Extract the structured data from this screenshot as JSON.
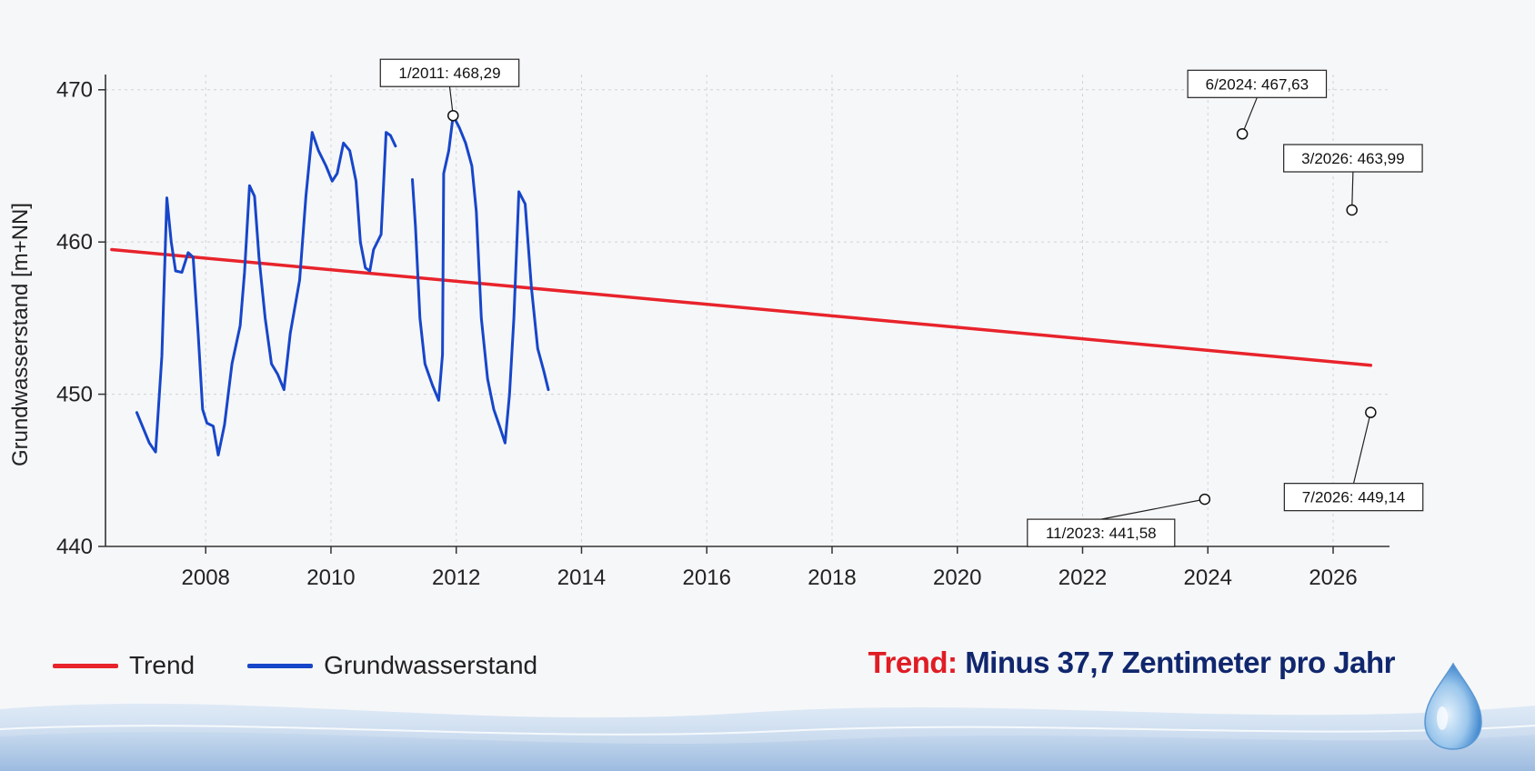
{
  "chart_data": {
    "type": "line",
    "title": "",
    "xlabel": "",
    "ylabel": "Grundwasserstand [m+NN]",
    "xlim": [
      2006.4,
      2026.9
    ],
    "ylim": [
      440,
      471
    ],
    "x_ticks": [
      "2008",
      "2010",
      "2012",
      "2014",
      "2016",
      "2018",
      "2020",
      "2022",
      "2024",
      "2026"
    ],
    "y_ticks": [
      "440",
      "450",
      "460",
      "470"
    ],
    "grid": true,
    "legend_position": "bottom-left",
    "series": [
      {
        "name": "Trend",
        "color": "#e8232b",
        "points": [
          [
            2006.5,
            459.5
          ],
          [
            2026.6,
            451.9
          ]
        ]
      },
      {
        "name": "Grundwasserstand",
        "color": "#1746c9",
        "segments": [
          [
            [
              2006.9,
              448.8
            ],
            [
              2007.0,
              447.8
            ],
            [
              2007.1,
              446.8
            ],
            [
              2007.2,
              446.2
            ],
            [
              2007.3,
              452.5
            ],
            [
              2007.38,
              462.9
            ],
            [
              2007.45,
              460.0
            ],
            [
              2007.52,
              458.1
            ],
            [
              2007.62,
              458.0
            ],
            [
              2007.72,
              459.3
            ],
            [
              2007.8,
              459.0
            ],
            [
              2007.88,
              454.0
            ],
            [
              2007.95,
              449.0
            ],
            [
              2008.02,
              448.1
            ],
            [
              2008.12,
              447.9
            ],
            [
              2008.2,
              446.0
            ],
            [
              2008.3,
              448.0
            ],
            [
              2008.42,
              452.0
            ],
            [
              2008.55,
              454.5
            ],
            [
              2008.62,
              458.0
            ],
            [
              2008.7,
              463.7
            ],
            [
              2008.78,
              463.0
            ],
            [
              2008.85,
              459.0
            ],
            [
              2008.95,
              455.0
            ],
            [
              2009.05,
              452.0
            ],
            [
              2009.15,
              451.3
            ],
            [
              2009.25,
              450.3
            ],
            [
              2009.35,
              454.0
            ],
            [
              2009.5,
              457.5
            ],
            [
              2009.6,
              463.0
            ],
            [
              2009.7,
              467.2
            ],
            [
              2009.8,
              466.0
            ],
            [
              2009.92,
              465.0
            ],
            [
              2010.02,
              464.0
            ],
            [
              2010.1,
              464.5
            ],
            [
              2010.2,
              466.5
            ],
            [
              2010.3,
              466.0
            ],
            [
              2010.4,
              464.0
            ],
            [
              2010.47,
              460.0
            ],
            [
              2010.55,
              458.3
            ],
            [
              2010.62,
              458.1
            ],
            [
              2010.68,
              459.5
            ],
            [
              2010.8,
              460.5
            ],
            [
              2010.88,
              467.2
            ],
            [
              2010.95,
              467.0
            ],
            [
              2011.03,
              466.3
            ]
          ],
          [
            [
              2011.3,
              464.1
            ],
            [
              2011.35,
              461.0
            ],
            [
              2011.42,
              455.0
            ],
            [
              2011.5,
              452.0
            ],
            [
              2011.62,
              450.6
            ],
            [
              2011.72,
              449.6
            ],
            [
              2011.78,
              452.6
            ],
            [
              2011.8,
              464.5
            ],
            [
              2011.88,
              466.0
            ],
            [
              2011.95,
              468.3
            ],
            [
              2012.05,
              467.5
            ],
            [
              2012.15,
              466.5
            ],
            [
              2012.25,
              465.0
            ],
            [
              2012.32,
              462.0
            ],
            [
              2012.4,
              455.0
            ],
            [
              2012.5,
              451.0
            ],
            [
              2012.6,
              449.0
            ],
            [
              2012.7,
              447.8
            ],
            [
              2012.78,
              446.8
            ],
            [
              2012.85,
              450.0
            ],
            [
              2012.92,
              455.0
            ],
            [
              2013.0,
              463.3
            ],
            [
              2013.1,
              462.5
            ],
            [
              2013.2,
              457.0
            ],
            [
              2013.3,
              453.0
            ],
            [
              2013.4,
              451.5
            ],
            [
              2013.47,
              450.3
            ]
          ]
        ]
      }
    ],
    "annotations": [
      {
        "text": "1/2011: 468,29",
        "x": 2011.95,
        "y": 468.3
      },
      {
        "text": "6/2024: 467,63",
        "x": 2024.55,
        "y": 467.1
      },
      {
        "text": "3/2026: 463,99",
        "x": 2026.3,
        "y": 462.1
      },
      {
        "text": "11/2023: 441,58",
        "x": 2023.95,
        "y": 443.1
      },
      {
        "text": "7/2026: 449,14",
        "x": 2026.6,
        "y": 448.8
      }
    ]
  },
  "legend": {
    "trend_label": "Trend",
    "level_label": "Grundwasserstand"
  },
  "headline": {
    "key": "Trend:",
    "value": "Minus 37,7 Zentimeter pro Jahr"
  },
  "colors": {
    "trend": "#e8232b",
    "level": "#1746c9",
    "headline_key": "#e01c24",
    "headline_value": "#10276e"
  },
  "decor": {
    "wave_icon": "water-wave-decoration",
    "drop_icon": "water-drop-icon"
  }
}
